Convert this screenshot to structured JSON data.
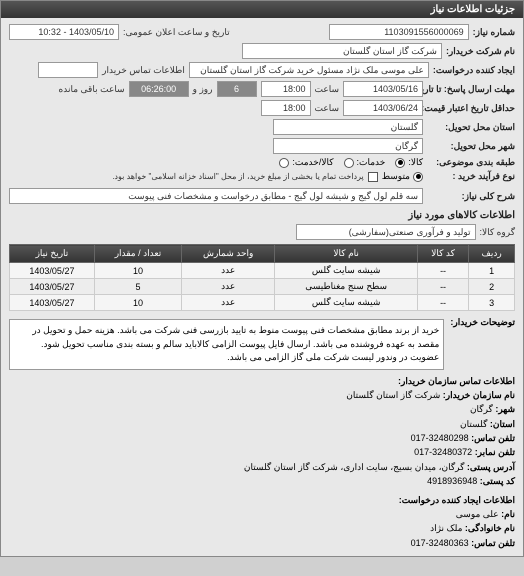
{
  "header": {
    "title": "جزئیات اطلاعات نیاز"
  },
  "main": {
    "request_no_label": "شماره نیاز:",
    "request_no": "1103091556000069",
    "datetime_label": "تاریخ و ساعت اعلان عمومی:",
    "datetime": "1403/05/10 - 10:32",
    "buyer_label": "نام شرکت خریدار:",
    "buyer": "شرکت گاز استان گلستان",
    "requester_label": "ایجاد کننده درخواست:",
    "requester": "علی موسی ملک نژاد مسئول خرید شرکت گاز استان گلستان",
    "buyer_contact_label": "اطلاعات تماس خریدار",
    "deadline_to_label": "مهلت ارسال پاسخ: تا تاریخ:",
    "deadline_date": "1403/05/16",
    "deadline_time_label": "ساعت",
    "deadline_time": "18:00",
    "remain_label1": "روز و",
    "remain_days": "6",
    "remain_time": "06:26:00",
    "remain_label2": "ساعت باقی مانده",
    "credit_deadline_label": "حداقل تاریخ اعتبار قیمت: تا تاریخ:",
    "credit_deadline_date": "1403/06/24",
    "credit_deadline_time": "18:00",
    "province_label": "استان محل تحویل:",
    "province": "گلستان",
    "city_label": "شهر محل تحویل:",
    "city": "گرگان",
    "grouping_label": "طبقه بندی موضوعی:",
    "radio_kala": "کالا:",
    "radio_khadamat": "خدمات:",
    "radio_kalakhadamat": "کالا/خدمت:",
    "process_label": "نوع فرآیند خرید :",
    "radio_motavasset": "متوسط",
    "process_note": "پرداخت تمام یا بخشی از مبلغ خرید، از محل \"اسناد خزانه اسلامی\" خواهد بود.",
    "desc_label": "شرح کلی نیاز:",
    "desc": "سه قلم لول گیج و شیشه لول گیج - مطابق درخواست و مشخصات فنی پیوست"
  },
  "items": {
    "section_title": "اطلاعات کالاهای مورد نیاز",
    "group_label": "گروه کالا:",
    "group": "تولید و فرآوری صنعتی(سفارشی)",
    "columns": [
      "ردیف",
      "کد کالا",
      "نام کالا",
      "واحد شمارش",
      "تعداد / مقدار",
      "تاریخ نیاز"
    ],
    "rows": [
      [
        "1",
        "--",
        "شیشه سایت گلس",
        "عدد",
        "10",
        "1403/05/27"
      ],
      [
        "2",
        "--",
        "سطح سنج مغناطیسی",
        "عدد",
        "5",
        "1403/05/27"
      ],
      [
        "3",
        "--",
        "شیشه سایت گلس",
        "عدد",
        "10",
        "1403/05/27"
      ]
    ]
  },
  "notes": {
    "label": "توضیحات خریدار:",
    "text": "خرید از برند مطابق مشخصات فنی پیوست منوط به تایید بازرسی فنی شرکت می باشد. هزینه حمل و تحویل در مقصد به عهده فروشنده می باشد. ارسال فایل پیوست الزامی کالاباید سالم و بسته بندی مناسب تحویل شود. عضویت در وندور لیست شرکت ملی گاز الزامی می باشد."
  },
  "contact_buyer": {
    "title": "اطلاعات تماس سازمان خریدار:",
    "org_label": "نام سازمان خریدار:",
    "org": "شرکت گاز استان گلستان",
    "city_label": "شهر:",
    "city": "گرگان",
    "province_label": "استان:",
    "province": "گلستان",
    "phone_label": "تلفن تماس:",
    "phone": "32480298-017",
    "fax_label": "تلفن نمابر:",
    "fax": "32480372-017",
    "addr_label": "آدرس پستی:",
    "addr": "گرگان، میدان بسیج، سایت اداری، شرکت گاز استان گلستان",
    "zip_label": "کد پستی:",
    "zip": "4918936948"
  },
  "contact_requester": {
    "title": "اطلاعات ایجاد کننده درخواست:",
    "name_label": "نام:",
    "name": "علی موسی",
    "lname_label": "نام خانوادگی:",
    "lname": "ملک نژاد",
    "phone_label": "تلفن تماس:",
    "phone": "32480363-017"
  }
}
